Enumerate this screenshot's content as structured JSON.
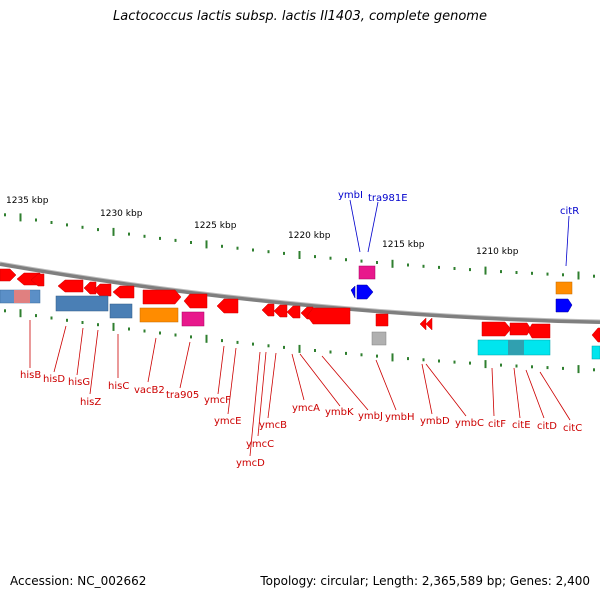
{
  "title": "Lactococcus lactis subsp. lactis Il1403, complete genome",
  "footer": {
    "accession": "Accession: NC_002662",
    "summary": "Topology: circular; Length: 2,365,589 bp; Genes: 2,400"
  },
  "colors": {
    "forward_gene": "#ff0000",
    "reverse_gene": "#ff0000",
    "gene_label": "#cc0000",
    "other_label": "#0000cc",
    "tick": "#2f7f2f",
    "backbone": "#808080"
  },
  "ruler_labels": [
    "1235 kbp",
    "1230 kbp",
    "1225 kbp",
    "1220 kbp",
    "1215 kbp",
    "1210 kbp"
  ],
  "gene_labels": [
    "hisB",
    "hisD",
    "hisG",
    "hisZ",
    "hisC",
    "vacB2",
    "tra905",
    "ymcF",
    "ymcE",
    "ymcD",
    "ymcC",
    "ymcB",
    "ymcA",
    "ymbK",
    "ymbJ",
    "ymbH",
    "ymbD",
    "ymbC",
    "citF",
    "citE",
    "citD",
    "citC"
  ],
  "other_labels": [
    "ymbI",
    "tra981E",
    "citR"
  ]
}
